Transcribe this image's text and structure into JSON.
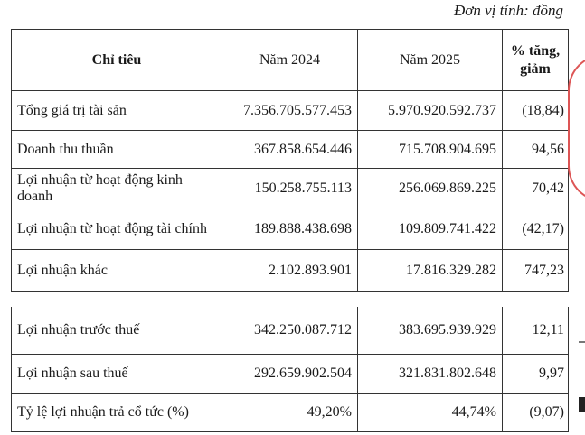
{
  "unit_label": "Đơn vị tính: đồng",
  "headers": [
    "Chỉ tiêu",
    "Năm 2024",
    "Năm 2025",
    "% tăng, giảm"
  ],
  "rows_top": [
    [
      "Tổng giá trị tài sản",
      "7.356.705.577.453",
      "5.970.920.592.737",
      "(18,84)"
    ],
    [
      "Doanh thu thuần",
      "367.858.654.446",
      "715.708.904.695",
      "94,56"
    ],
    [
      "Lợi nhuận từ hoạt động kinh doanh",
      "150.258.755.113",
      "256.069.869.225",
      "70,42"
    ],
    [
      "Lợi nhuận từ hoạt động tài chính",
      "189.888.438.698",
      "109.809.741.422",
      "(42,17)"
    ],
    [
      "Lợi nhuận khác",
      "2.102.893.901",
      "17.816.329.282",
      "747,23"
    ]
  ],
  "rows_bottom": [
    [
      "Lợi nhuận trước thuế",
      "342.250.087.712",
      "383.695.939.929",
      "12,11"
    ],
    [
      "Lợi nhuận sau thuế",
      "292.659.902.504",
      "321.831.802.648",
      "9,97"
    ],
    [
      "Tỷ lệ lợi nhuận trả cổ tức (%)",
      "49,20%",
      "44,74%",
      "(9,07)"
    ]
  ],
  "stamp_color": "#d55555"
}
